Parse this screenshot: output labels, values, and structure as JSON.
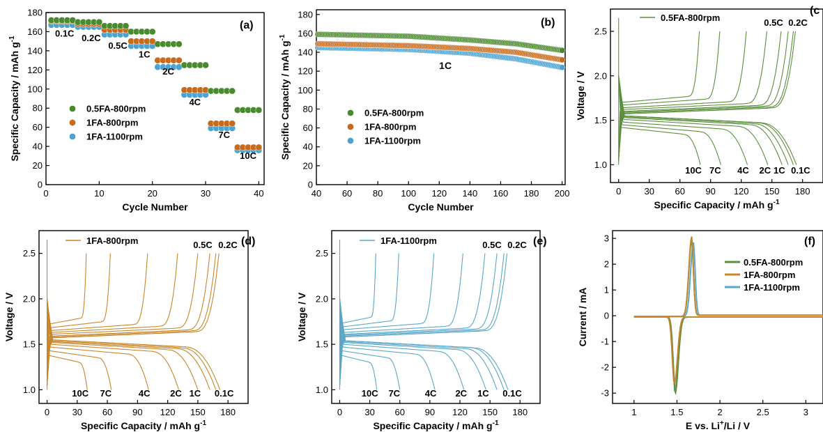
{
  "colors": {
    "green": "#4a8a2e",
    "orange": "#c86a1a",
    "blue": "#4aa3d2",
    "green_line": "#5a8f3c",
    "orange_line": "#c8862a",
    "blue_line": "#5aa7c8",
    "axis": "#000000"
  },
  "chart_data": [
    {
      "panel": "(a)",
      "type": "scatter",
      "xlabel": "Cycle Number",
      "ylabel": "Specific Capacity / mAh g",
      "ylabel_sup": "-1",
      "xlim": [
        0,
        41
      ],
      "ylim": [
        0,
        180
      ],
      "xticks": [
        0,
        10,
        20,
        30,
        40
      ],
      "yticks": [
        0,
        20,
        40,
        60,
        80,
        100,
        120,
        140,
        160,
        180
      ],
      "legend": {
        "placement": "left-middle",
        "entries": [
          "0.5FA-800rpm",
          "1FA-800rpm",
          "1FA-1100rpm"
        ]
      },
      "annotations": [
        {
          "text": "0.1C",
          "x": 3.5,
          "y": 155
        },
        {
          "text": "0.2C",
          "x": 8.5,
          "y": 150
        },
        {
          "text": "0.5C",
          "x": 13.5,
          "y": 142
        },
        {
          "text": "1C",
          "x": 18.5,
          "y": 133
        },
        {
          "text": "2C",
          "x": 23,
          "y": 115
        },
        {
          "text": "4C",
          "x": 28,
          "y": 83
        },
        {
          "text": "7C",
          "x": 33.5,
          "y": 49
        },
        {
          "text": "10C",
          "x": 38,
          "y": 27
        }
      ],
      "segments": {
        "0.5FA-800rpm": [
          [
            1,
            5,
            172
          ],
          [
            6,
            10,
            170
          ],
          [
            11,
            15,
            166
          ],
          [
            16,
            20,
            160
          ],
          [
            21,
            25,
            147
          ],
          [
            26,
            30,
            125
          ],
          [
            31,
            35,
            98
          ],
          [
            36,
            40,
            78
          ]
        ],
        "1FA-800rpm": [
          [
            1,
            5,
            171
          ],
          [
            6,
            10,
            168
          ],
          [
            11,
            15,
            162
          ],
          [
            16,
            20,
            150
          ],
          [
            21,
            25,
            130
          ],
          [
            26,
            30,
            99
          ],
          [
            31,
            35,
            64
          ],
          [
            36,
            40,
            39
          ]
        ],
        "1FA-1100rpm": [
          [
            1,
            5,
            167
          ],
          [
            6,
            10,
            165
          ],
          [
            11,
            15,
            157
          ],
          [
            16,
            20,
            145
          ],
          [
            21,
            25,
            123
          ],
          [
            26,
            30,
            94
          ],
          [
            31,
            35,
            59
          ],
          [
            36,
            40,
            36
          ]
        ]
      }
    },
    {
      "panel": "(b)",
      "type": "scatter",
      "xlabel": "Cycle Number",
      "ylabel": "Specific Capacity / mAh g",
      "ylabel_sup": "-1",
      "xlim": [
        40,
        202
      ],
      "ylim": [
        0,
        185
      ],
      "xticks": [
        40,
        60,
        80,
        100,
        120,
        140,
        160,
        180,
        200
      ],
      "yticks": [
        0,
        20,
        40,
        60,
        80,
        100,
        120,
        140,
        160,
        180
      ],
      "legend": {
        "placement": "left-middle",
        "entries": [
          "0.5FA-800rpm",
          "1FA-800rpm",
          "1FA-1100rpm"
        ]
      },
      "annotations": [
        {
          "text": "1C",
          "x": 124,
          "y": 126
        }
      ],
      "series": [
        {
          "name": "0.5FA-800rpm",
          "x": [
            41,
            100,
            140,
            170,
            200
          ],
          "y": [
            159,
            157,
            153,
            149,
            142
          ]
        },
        {
          "name": "1FA-800rpm",
          "x": [
            41,
            100,
            140,
            170,
            200
          ],
          "y": [
            149,
            147,
            144,
            140,
            132
          ]
        },
        {
          "name": "1FA-1100rpm",
          "x": [
            41,
            100,
            140,
            170,
            200
          ],
          "y": [
            145,
            143,
            139,
            133,
            124
          ]
        }
      ]
    },
    {
      "panel": "(c",
      "type": "line",
      "name": "0.5FA-800rpm",
      "xlabel": "Specific Capacity / mAh g",
      "xlabel_sup": "-1",
      "ylabel": "Voltage / V",
      "xlim": [
        -8,
        200
      ],
      "ylim": [
        0.8,
        2.75
      ],
      "xticks": [
        0,
        30,
        60,
        90,
        120,
        150,
        180
      ],
      "yticks": [
        1.0,
        1.5,
        2.0,
        2.5
      ],
      "legend": {
        "placement": "top-left",
        "entries": [
          "0.5FA-800rpm"
        ]
      },
      "charge_labels": [
        "0.5C",
        "0.2C"
      ],
      "discharge_labels": [
        "10C",
        "7C",
        "4C",
        "2C",
        "1C",
        "0.1C"
      ],
      "charge_plateau_start": 1.62,
      "discharge_plateau_start": 1.54,
      "curves": [
        {
          "rate": "0.1C",
          "charge_end": 173,
          "plateau_c": 1.57,
          "discharge_end": 174,
          "plateau_d": 1.55
        },
        {
          "rate": "0.2C",
          "charge_end": 171,
          "plateau_c": 1.58,
          "discharge_end": 171,
          "plateau_d": 1.55
        },
        {
          "rate": "0.5C",
          "charge_end": 166,
          "plateau_c": 1.59,
          "discharge_end": 166,
          "plateau_d": 1.54
        },
        {
          "rate": "1C",
          "charge_end": 159,
          "plateau_c": 1.6,
          "discharge_end": 160,
          "plateau_d": 1.53
        },
        {
          "rate": "2C",
          "charge_end": 145,
          "plateau_c": 1.62,
          "discharge_end": 146,
          "plateau_d": 1.51
        },
        {
          "rate": "4C",
          "charge_end": 125,
          "plateau_c": 1.64,
          "discharge_end": 126,
          "plateau_d": 1.48
        },
        {
          "rate": "7C",
          "charge_end": 99,
          "plateau_c": 1.67,
          "discharge_end": 100,
          "plateau_d": 1.45
        },
        {
          "rate": "10C",
          "charge_end": 79,
          "plateau_c": 1.7,
          "discharge_end": 80,
          "plateau_d": 1.42
        }
      ]
    },
    {
      "panel": "(d)",
      "type": "line",
      "name": "1FA-800rpm",
      "xlabel": "Specific Capacity / mAh g",
      "xlabel_sup": "-1",
      "ylabel": "Voltage / V",
      "xlim": [
        -8,
        200
      ],
      "ylim": [
        0.85,
        2.75
      ],
      "xticks": [
        0,
        30,
        60,
        90,
        120,
        150,
        180
      ],
      "yticks": [
        1.0,
        1.5,
        2.0,
        2.5
      ],
      "legend": {
        "placement": "top-left",
        "entries": [
          "1FA-800rpm"
        ]
      },
      "charge_labels": [
        "0.5C",
        "0.2C"
      ],
      "discharge_labels": [
        "10C",
        "7C",
        "4C",
        "2C",
        "1C",
        "0.1C"
      ],
      "curves": [
        {
          "rate": "0.1C",
          "charge_end": 171,
          "plateau_c": 1.57,
          "discharge_end": 172,
          "plateau_d": 1.55
        },
        {
          "rate": "0.2C",
          "charge_end": 168,
          "plateau_c": 1.58,
          "discharge_end": 168,
          "plateau_d": 1.54
        },
        {
          "rate": "0.5C",
          "charge_end": 162,
          "plateau_c": 1.59,
          "discharge_end": 162,
          "plateau_d": 1.53
        },
        {
          "rate": "1C",
          "charge_end": 150,
          "plateau_c": 1.61,
          "discharge_end": 150,
          "plateau_d": 1.52
        },
        {
          "rate": "2C",
          "charge_end": 130,
          "plateau_c": 1.63,
          "discharge_end": 131,
          "plateau_d": 1.5
        },
        {
          "rate": "4C",
          "charge_end": 100,
          "plateau_c": 1.65,
          "discharge_end": 101,
          "plateau_d": 1.47
        },
        {
          "rate": "7C",
          "charge_end": 63,
          "plateau_c": 1.68,
          "discharge_end": 64,
          "plateau_d": 1.43
        },
        {
          "rate": "10C",
          "charge_end": 39,
          "plateau_c": 1.72,
          "discharge_end": 40,
          "plateau_d": 1.38
        }
      ]
    },
    {
      "panel": "(e)",
      "type": "line",
      "name": "1FA-1100rpm",
      "xlabel": "Specific Capacity / mAh g",
      "xlabel_sup": "-1",
      "ylabel": "Voltage / V",
      "xlim": [
        -8,
        200
      ],
      "ylim": [
        0.85,
        2.75
      ],
      "xticks": [
        0,
        30,
        60,
        90,
        120,
        150,
        180
      ],
      "yticks": [
        1.0,
        1.5,
        2.0,
        2.5
      ],
      "legend": {
        "placement": "top-left",
        "entries": [
          "1FA-1100rpm"
        ]
      },
      "charge_labels": [
        "0.5C",
        "0.2C"
      ],
      "discharge_labels": [
        "10C",
        "7C",
        "4C",
        "2C",
        "1C",
        "0.1C"
      ],
      "curves": [
        {
          "rate": "0.1C",
          "charge_end": 167,
          "plateau_c": 1.58,
          "discharge_end": 168,
          "plateau_d": 1.54
        },
        {
          "rate": "0.2C",
          "charge_end": 164,
          "plateau_c": 1.59,
          "discharge_end": 164,
          "plateau_d": 1.54
        },
        {
          "rate": "0.5C",
          "charge_end": 157,
          "plateau_c": 1.6,
          "discharge_end": 157,
          "plateau_d": 1.53
        },
        {
          "rate": "1C",
          "charge_end": 145,
          "plateau_c": 1.61,
          "discharge_end": 146,
          "plateau_d": 1.52
        },
        {
          "rate": "2C",
          "charge_end": 123,
          "plateau_c": 1.63,
          "discharge_end": 124,
          "plateau_d": 1.5
        },
        {
          "rate": "4C",
          "charge_end": 94,
          "plateau_c": 1.66,
          "discharge_end": 95,
          "plateau_d": 1.47
        },
        {
          "rate": "7C",
          "charge_end": 59,
          "plateau_c": 1.69,
          "discharge_end": 60,
          "plateau_d": 1.43
        },
        {
          "rate": "10C",
          "charge_end": 36,
          "plateau_c": 1.73,
          "discharge_end": 37,
          "plateau_d": 1.38
        }
      ]
    },
    {
      "panel": "(f)",
      "type": "line",
      "xlabel": "E vs. Li",
      "xlabel_sup": "+",
      "xlabel_tail": "/Li / V",
      "ylabel": "Current / mA",
      "xlim": [
        0.75,
        3.2
      ],
      "ylim": [
        -3.4,
        3.3
      ],
      "xticks": [
        1.0,
        1.5,
        2.0,
        2.5,
        3.0
      ],
      "yticks": [
        -3,
        -2,
        -1,
        0,
        1,
        2,
        3
      ],
      "legend": {
        "placement": "top-right",
        "entries": [
          "0.5FA-800rpm",
          "1FA-800rpm",
          "1FA-1100rpm"
        ]
      },
      "series": [
        {
          "name": "0.5FA-800rpm",
          "anodic_peak_x": 1.67,
          "anodic_peak_y": 2.95,
          "cathodic_peak_x": 1.48,
          "cathodic_peak_y": -2.95
        },
        {
          "name": "1FA-800rpm",
          "anodic_peak_x": 1.67,
          "anodic_peak_y": 3.05,
          "cathodic_peak_x": 1.47,
          "cathodic_peak_y": -2.6
        },
        {
          "name": "1FA-1100rpm",
          "anodic_peak_x": 1.69,
          "anodic_peak_y": 2.85,
          "cathodic_peak_x": 1.48,
          "cathodic_peak_y": -2.75
        }
      ]
    }
  ]
}
